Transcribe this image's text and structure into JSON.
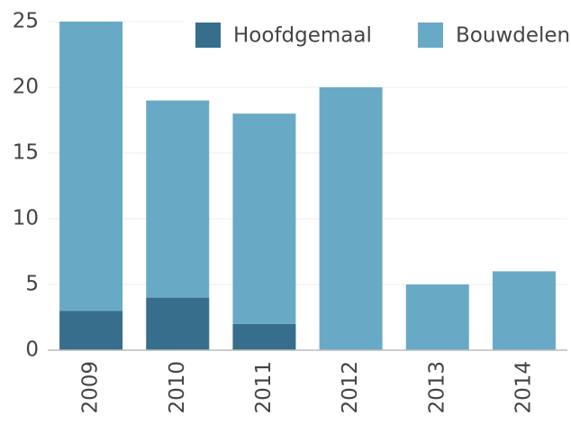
{
  "chart_data": {
    "type": "stacked_bar",
    "categories": [
      "2009",
      "2010",
      "2011",
      "2012",
      "2013",
      "2014"
    ],
    "series": [
      {
        "name": "Hoofdgemaal",
        "color": "#366e8c",
        "values": [
          3,
          4,
          2,
          0,
          0,
          0
        ]
      },
      {
        "name": "Bouwdelen",
        "color": "#68aac5",
        "values": [
          22,
          15,
          16,
          20,
          5,
          6
        ]
      }
    ],
    "ylim": [
      0,
      25
    ],
    "yticks": [
      0,
      5,
      10,
      15,
      20,
      25
    ],
    "grid": true,
    "legend": "upper right"
  }
}
